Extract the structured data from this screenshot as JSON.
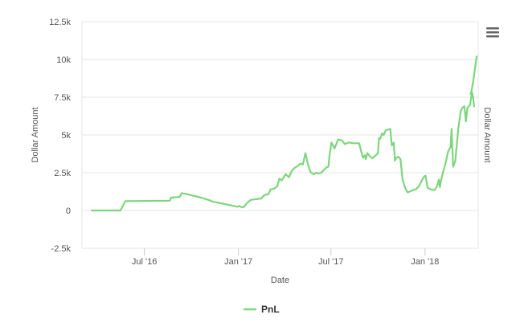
{
  "chart_data": {
    "type": "line",
    "xlabel": "Date",
    "ylabel": "Dollar Amount",
    "ylabel_right": "Dollar Amount",
    "ylim": [
      -2500,
      12500
    ],
    "yticks": [
      -2500,
      0,
      2500,
      5000,
      7500,
      10000,
      12500
    ],
    "ytick_labels": [
      "-2.5k",
      "0",
      "2.5k",
      "5k",
      "7.5k",
      "10k",
      "12.5k"
    ],
    "xlim": [
      "2016-03-01",
      "2018-04-15"
    ],
    "xticks": [
      "2016-07-01",
      "2017-01-01",
      "2017-07-01",
      "2018-01-01"
    ],
    "xtick_labels": [
      "Jul '16",
      "Jan '17",
      "Jul '17",
      "Jan '18"
    ],
    "grid": true,
    "legend": "bottom-center",
    "series": [
      {
        "name": "PnL",
        "color": "#7cd67c",
        "x": [
          "2016-03-20",
          "2016-05-15",
          "2016-05-25",
          "2016-08-20",
          "2016-08-22",
          "2016-09-08",
          "2016-09-12",
          "2016-09-20",
          "2016-10-20",
          "2016-11-08",
          "2016-11-10",
          "2016-12-30",
          "2017-01-03",
          "2017-01-08",
          "2017-01-12",
          "2017-01-18",
          "2017-01-25",
          "2017-02-05",
          "2017-02-15",
          "2017-02-20",
          "2017-03-01",
          "2017-03-05",
          "2017-03-12",
          "2017-03-18",
          "2017-03-22",
          "2017-03-27",
          "2017-04-03",
          "2017-04-10",
          "2017-04-15",
          "2017-04-20",
          "2017-04-27",
          "2017-05-02",
          "2017-05-07",
          "2017-05-12",
          "2017-05-17",
          "2017-05-22",
          "2017-05-28",
          "2017-06-02",
          "2017-06-08",
          "2017-06-12",
          "2017-06-18",
          "2017-06-22",
          "2017-06-26",
          "2017-06-28",
          "2017-07-02",
          "2017-07-08",
          "2017-07-15",
          "2017-07-22",
          "2017-07-28",
          "2017-08-05",
          "2017-08-15",
          "2017-08-25",
          "2017-09-01",
          "2017-09-02",
          "2017-09-05",
          "2017-09-07",
          "2017-09-10",
          "2017-09-15",
          "2017-09-20",
          "2017-09-28",
          "2017-10-01",
          "2017-10-03",
          "2017-10-05",
          "2017-10-09",
          "2017-10-12",
          "2017-10-16",
          "2017-10-20",
          "2017-10-25",
          "2017-10-28",
          "2017-11-01",
          "2017-11-03",
          "2017-11-06",
          "2017-11-10",
          "2017-11-14",
          "2017-11-18",
          "2017-11-23",
          "2017-11-28",
          "2017-12-02",
          "2017-12-08",
          "2017-12-14",
          "2017-12-20",
          "2017-12-26",
          "2017-12-30",
          "2018-01-02",
          "2018-01-06",
          "2018-01-12",
          "2018-01-20",
          "2018-01-25",
          "2018-01-28",
          "2018-01-30",
          "2018-02-02",
          "2018-02-05",
          "2018-02-10",
          "2018-02-15",
          "2018-02-20",
          "2018-02-22",
          "2018-02-25",
          "2018-03-01",
          "2018-03-07",
          "2018-03-12",
          "2018-03-15",
          "2018-03-19",
          "2018-03-22",
          "2018-03-25",
          "2018-03-30",
          "2018-04-03",
          "2018-04-05",
          "2018-04-07"
        ],
        "y": [
          0,
          0,
          620,
          650,
          850,
          900,
          1150,
          1100,
          850,
          650,
          600,
          250,
          300,
          200,
          250,
          500,
          700,
          750,
          800,
          1000,
          1100,
          1400,
          1450,
          1600,
          2100,
          2000,
          2400,
          2200,
          2600,
          2800,
          2950,
          3100,
          3050,
          3800,
          3050,
          2550,
          2400,
          2500,
          2450,
          2500,
          2700,
          2850,
          2900,
          3600,
          4500,
          4100,
          4700,
          4650,
          4400,
          4500,
          4450,
          4450,
          3550,
          3500,
          3650,
          3400,
          3800,
          3600,
          3450,
          3700,
          3800,
          4800,
          4750,
          5100,
          5000,
          5300,
          5350,
          5400,
          4300,
          4500,
          3300,
          3500,
          3550,
          3400,
          2050,
          1500,
          1200,
          1250,
          1350,
          1400,
          1600,
          2000,
          2250,
          2300,
          1500,
          1400,
          1350,
          1650,
          2050,
          1550,
          2100,
          2500,
          3100,
          3900,
          4200,
          5400,
          2900,
          3250,
          5400,
          6600,
          6800,
          6900,
          5900,
          6800,
          7000,
          7800,
          7500,
          6900
        ]
      },
      {
        "name": "",
        "color": "#7cd67c",
        "x": [
          "2018-03-31",
          "2018-04-02",
          "2018-04-05",
          "2018-04-08",
          "2018-04-10",
          "2018-04-12"
        ],
        "y": [
          7700,
          7900,
          8500,
          9200,
          9700,
          10200
        ]
      }
    ]
  },
  "menu": {
    "icon": "hamburger-menu-icon"
  }
}
